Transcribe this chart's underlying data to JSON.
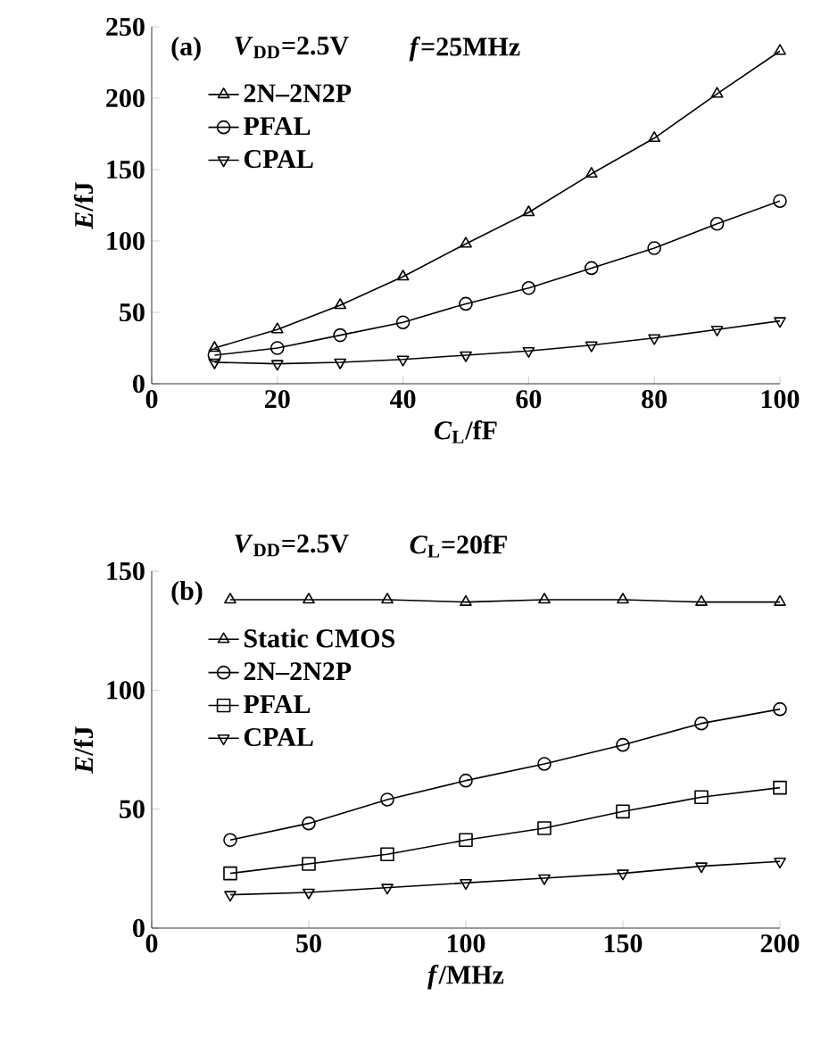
{
  "chart_data": [
    {
      "type": "line",
      "xlabel": "*C*$_{L}$/fF",
      "ylabel": "*E*/fJ",
      "annotations": [
        "(a)",
        "*V*$_{DD}$=2.5V",
        "*f*=25MHz"
      ],
      "x": [
        10,
        20,
        30,
        40,
        50,
        60,
        70,
        80,
        90,
        100
      ],
      "xlim": [
        0,
        100
      ],
      "ylim": [
        0,
        250
      ],
      "xticks": [
        0,
        20,
        40,
        60,
        80,
        100
      ],
      "yticks": [
        0,
        50,
        100,
        150,
        200,
        250
      ],
      "legend": "top left",
      "line_style": "solid",
      "series": [
        {
          "name": "2N–2N2P",
          "color": "#000000",
          "marker": "triangle",
          "values": [
            25,
            38,
            55,
            75,
            98,
            120,
            147,
            172,
            203,
            233
          ]
        },
        {
          "name": "PFAL",
          "color": "#000000",
          "marker": "circle",
          "values": [
            20,
            25,
            34,
            43,
            56,
            67,
            81,
            95,
            112,
            128
          ]
        },
        {
          "name": "CPAL",
          "color": "#000000",
          "marker": "triangle_down",
          "values": [
            15,
            14,
            15,
            17,
            20,
            23,
            27,
            32,
            38,
            44
          ]
        }
      ]
    },
    {
      "type": "line",
      "xlabel": "*f*/MHz",
      "ylabel": "*E*/fJ",
      "annotations": [
        "(b)",
        "*V*$_{DD}$=2.5V",
        "*C*$_{L}$=20fF"
      ],
      "x": [
        25,
        50,
        75,
        100,
        125,
        150,
        175,
        200
      ],
      "xlim": [
        0,
        200
      ],
      "ylim": [
        0,
        150
      ],
      "xticks": [
        0,
        50,
        100,
        150,
        200
      ],
      "yticks": [
        0,
        50,
        100,
        150
      ],
      "legend": "top left",
      "line_style": "solid",
      "series": [
        {
          "name": "Static CMOS",
          "color": "#000000",
          "marker": "triangle",
          "values": [
            138,
            138,
            138,
            137,
            138,
            138,
            137,
            137
          ]
        },
        {
          "name": "2N–2N2P",
          "color": "#000000",
          "marker": "circle",
          "values": [
            37,
            44,
            54,
            62,
            69,
            77,
            86,
            92
          ]
        },
        {
          "name": "PFAL",
          "color": "#000000",
          "marker": "square",
          "values": [
            23,
            27,
            31,
            37,
            42,
            49,
            55,
            59
          ]
        },
        {
          "name": "CPAL",
          "color": "#000000",
          "marker": "triangle_down",
          "values": [
            14,
            15,
            17,
            19,
            21,
            23,
            26,
            28
          ]
        }
      ]
    }
  ]
}
